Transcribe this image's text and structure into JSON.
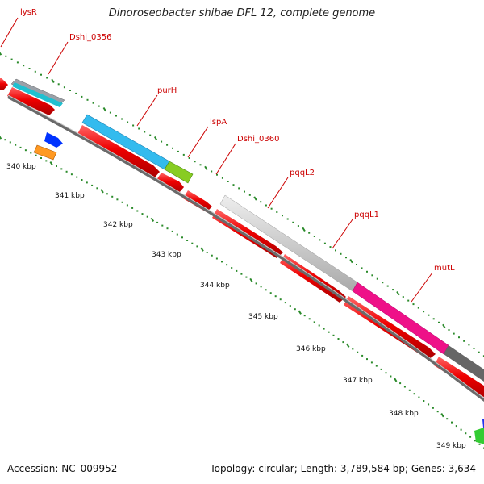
{
  "title": "Dinoroseobacter shibae DFL 12, complete genome",
  "footer": {
    "accession_label": "Accession:",
    "accession_value": "NC_009952",
    "topology_label": "Topology:",
    "topology_value": "circular",
    "length_label": "Length:",
    "length_value": "3,789,584 bp",
    "genes_label": "Genes:",
    "genes_value": "3,634"
  },
  "colors": {
    "cds": "#ee0000",
    "gene_label": "#cc0000",
    "tick": "#2a8a2a",
    "backbone": "#777777",
    "ruler_text": "#111111"
  },
  "ruler_labels": [
    {
      "text": "340 kbp",
      "kbp": 340
    },
    {
      "text": "341 kbp",
      "kbp": 341
    },
    {
      "text": "342 kbp",
      "kbp": 342
    },
    {
      "text": "343 kbp",
      "kbp": 343
    },
    {
      "text": "344 kbp",
      "kbp": 344
    },
    {
      "text": "345 kbp",
      "kbp": 345
    },
    {
      "text": "346 kbp",
      "kbp": 346
    },
    {
      "text": "347 kbp",
      "kbp": 347
    },
    {
      "text": "348 kbp",
      "kbp": 348
    },
    {
      "text": "349 kbp",
      "kbp": 349
    }
  ],
  "genes": [
    {
      "name": "lysR",
      "cog_color": "#9aa0a8"
    },
    {
      "name": "Dshi_0356",
      "cog_color": "#20c0d0"
    },
    {
      "name": "purH",
      "cog_color": "#33bbee"
    },
    {
      "name": "lspA",
      "cog_color": "#88cc22"
    },
    {
      "name": "Dshi_0360",
      "cog_color": "#cccccc"
    },
    {
      "name": "pqqL2",
      "cog_color": "#cccccc"
    },
    {
      "name": "pqqL1",
      "cog_color": "#cccccc"
    },
    {
      "name": "mutL",
      "cog_color": "#ee1188"
    }
  ]
}
